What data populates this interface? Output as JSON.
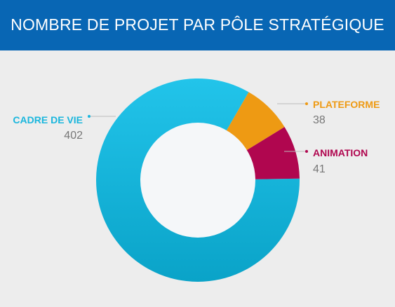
{
  "header": {
    "title": "NOMBRE DE PROJET PAR PÔLE STRATÉGIQUE"
  },
  "colors": {
    "header_bg": "#0866b4",
    "background": "#ededed",
    "center": "#f5f7f9",
    "value_text": "#777777"
  },
  "chart_data": {
    "type": "pie",
    "title": "NOMBRE DE PROJET PAR PÔLE STRATÉGIQUE",
    "donut": true,
    "categories": [
      "CADRE DE VIE",
      "PLATEFORME",
      "ANIMATION"
    ],
    "values": [
      402,
      38,
      41
    ],
    "colors": [
      "#1ab6dd",
      "#ee9a13",
      "#b0064f"
    ],
    "legend": "labels next to slices"
  }
}
